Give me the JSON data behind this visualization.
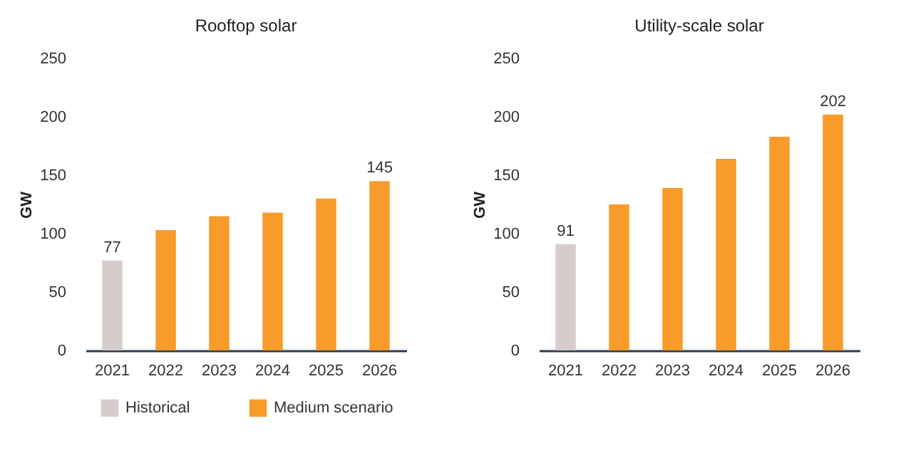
{
  "chart_data": [
    {
      "type": "bar",
      "title": "Rooftop solar",
      "ylabel": "GW",
      "categories": [
        "2021",
        "2022",
        "2023",
        "2024",
        "2025",
        "2026"
      ],
      "series": [
        {
          "name": "Historical",
          "color": "#d6cdca",
          "values": [
            77,
            null,
            null,
            null,
            null,
            null
          ],
          "value_labels": [
            "77",
            null,
            null,
            null,
            null,
            null
          ]
        },
        {
          "name": "Medium scenario",
          "color": "#f89b2a",
          "values": [
            null,
            103,
            115,
            118,
            130,
            145
          ],
          "value_labels": [
            null,
            null,
            null,
            null,
            null,
            "145"
          ]
        }
      ],
      "ylim": [
        0,
        250
      ],
      "yticks": [
        0,
        50,
        100,
        150,
        200,
        250
      ],
      "grid": false,
      "legend": "bottom"
    },
    {
      "type": "bar",
      "title": "Utility-scale solar",
      "ylabel": "GW",
      "categories": [
        "2021",
        "2022",
        "2023",
        "2024",
        "2025",
        "2026"
      ],
      "series": [
        {
          "color": "#d6cdca",
          "values": [
            91,
            null,
            null,
            null,
            null,
            null
          ],
          "value_labels": [
            "91",
            null,
            null,
            null,
            null,
            null
          ]
        },
        {
          "color": "#f89b2a",
          "values": [
            null,
            125,
            139,
            164,
            183,
            202
          ],
          "value_labels": [
            null,
            null,
            null,
            null,
            null,
            "202"
          ]
        }
      ],
      "ylim": [
        0,
        250
      ],
      "yticks": [
        0,
        50,
        100,
        150,
        200,
        250
      ],
      "grid": false
    }
  ]
}
